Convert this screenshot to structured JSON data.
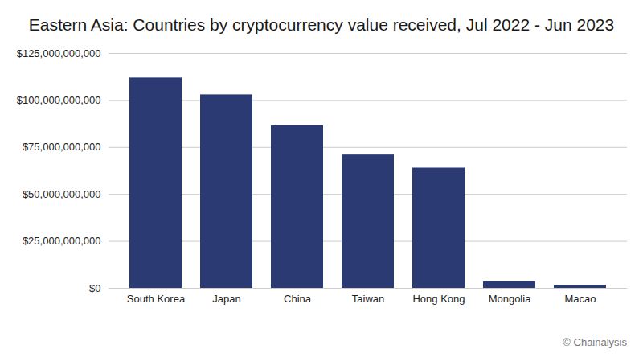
{
  "chart_data": {
    "type": "bar",
    "title": "Eastern Asia: Countries by cryptocurrency value received, Jul 2022 - Jun 2023",
    "caption": "© Chainalysis",
    "categories": [
      "South Korea",
      "Japan",
      "China",
      "Taiwan",
      "Hong Kong",
      "Mongolia",
      "Macao"
    ],
    "values": [
      112000000000,
      103000000000,
      86500000000,
      71000000000,
      64000000000,
      3500000000,
      1500000000
    ],
    "color": "#2b3a73",
    "ylim": [
      0,
      125000000000
    ],
    "yticks": [
      {
        "value": 0,
        "label": "$0"
      },
      {
        "value": 25000000000,
        "label": "$25,000,000,000"
      },
      {
        "value": 50000000000,
        "label": "$50,000,000,000"
      },
      {
        "value": 75000000000,
        "label": "$75,000,000,000"
      },
      {
        "value": 100000000000,
        "label": "$100,000,000,000"
      },
      {
        "value": 125000000000,
        "label": "$125,000,000,000"
      }
    ],
    "grid": true
  }
}
